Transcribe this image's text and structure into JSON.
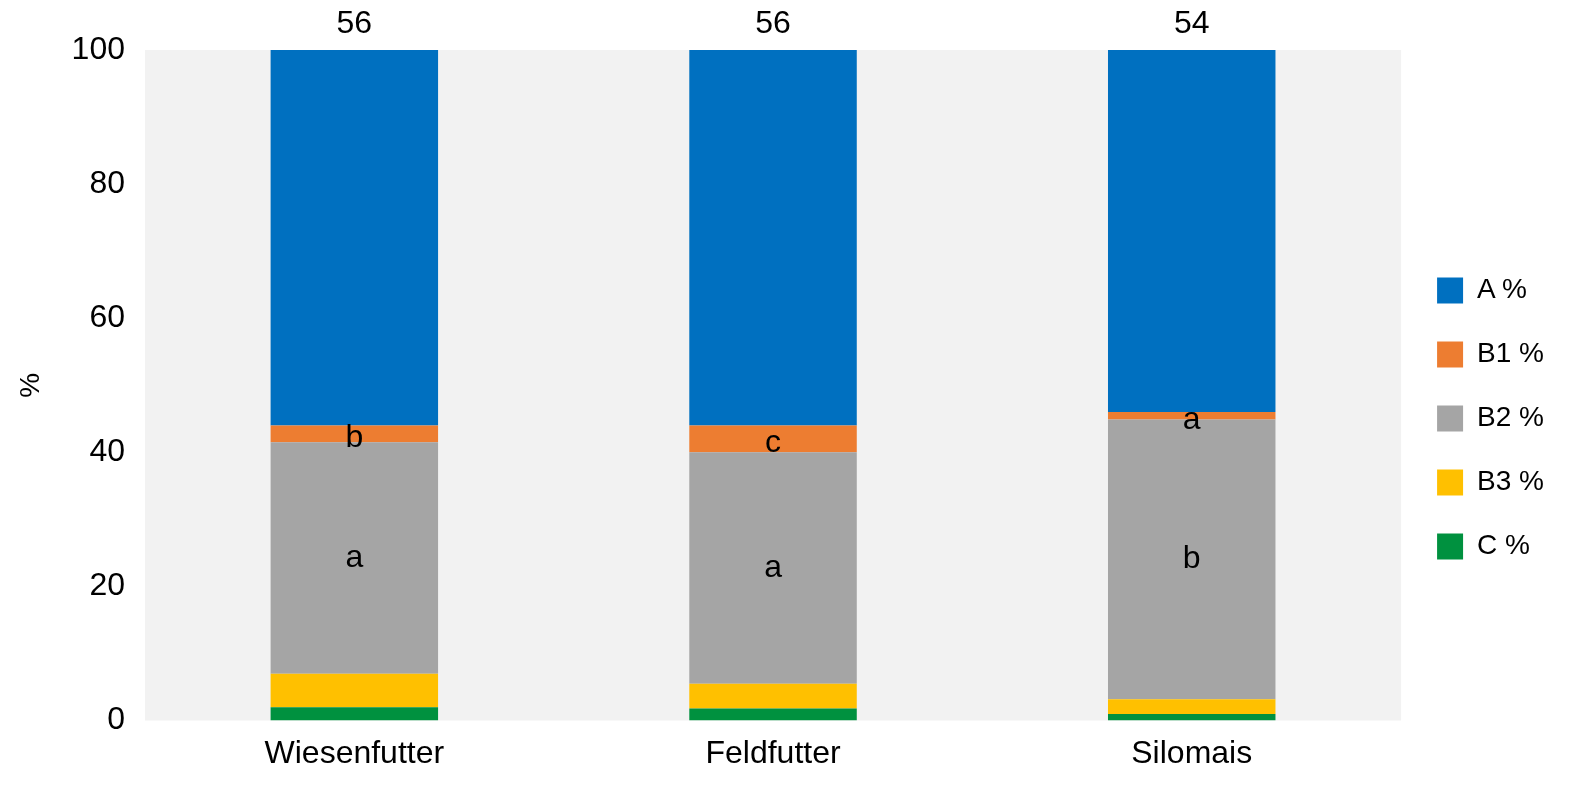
{
  "chart_data": {
    "type": "bar",
    "stacked": true,
    "ylabel": "%",
    "categories": [
      "Wiesenfutter",
      "Feldfutter",
      "Silomais"
    ],
    "series": [
      {
        "name": "C %",
        "color": "#00913f",
        "values": [
          2,
          1.8,
          1
        ]
      },
      {
        "name": "B3 %",
        "color": "#ffc000",
        "values": [
          5,
          3.7,
          2.2
        ]
      },
      {
        "name": "B2 %",
        "color": "#a5a5a5",
        "values": [
          34.5,
          34.5,
          41.7
        ]
      },
      {
        "name": "B1 %",
        "color": "#ed7d31",
        "values": [
          2.5,
          4,
          1.1
        ]
      },
      {
        "name": "A %",
        "color": "#0070c0",
        "values": [
          56,
          56,
          54
        ],
        "value_labels": [
          "56",
          "56",
          "54"
        ]
      }
    ],
    "ylim": [
      0,
      100
    ],
    "yticks": [
      0,
      20,
      40,
      60,
      80,
      100
    ],
    "grid": false,
    "legend": "right",
    "annotations": [
      "b",
      "a",
      "c",
      "a",
      "a",
      "b"
    ]
  }
}
